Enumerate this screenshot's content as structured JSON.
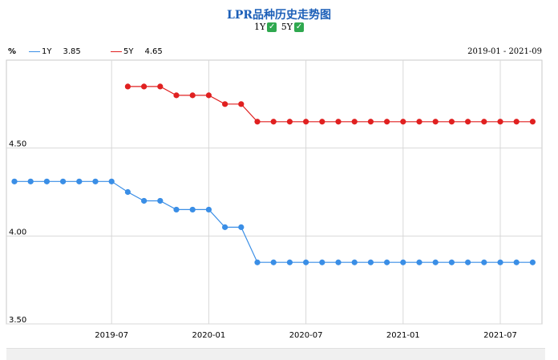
{
  "title": "LPR品种历史走势图",
  "toggles": [
    {
      "label": "1Y",
      "checked": true
    },
    {
      "label": "5Y",
      "checked": true
    }
  ],
  "check_glyph": "✓",
  "unit": "%",
  "legend": [
    {
      "name": "1Y",
      "value": "3.85",
      "color": "#3a8ee6"
    },
    {
      "name": "5Y",
      "value": "4.65",
      "color": "#e02020"
    }
  ],
  "date_range": "2019-01 - 2021-09",
  "chart_data": {
    "type": "line",
    "ylim": [
      3.5,
      5.0
    ],
    "yticks": [
      3.5,
      4.0,
      4.5
    ],
    "ytick_labels": [
      "3.50",
      "4.00",
      "4.50"
    ],
    "xlim": [
      "2019-01",
      "2021-09"
    ],
    "xticks": [
      "2019-07",
      "2020-01",
      "2020-07",
      "2021-01",
      "2021-07"
    ],
    "grid": true,
    "series": [
      {
        "name": "1Y",
        "color": "#3a8ee6",
        "x": [
          "2019-01",
          "2019-02",
          "2019-03",
          "2019-04",
          "2019-05",
          "2019-06",
          "2019-07",
          "2019-08",
          "2019-09",
          "2019-10",
          "2019-11",
          "2019-12",
          "2020-01",
          "2020-02",
          "2020-03",
          "2020-04",
          "2020-05",
          "2020-06",
          "2020-07",
          "2020-08",
          "2020-09",
          "2020-10",
          "2020-11",
          "2020-12",
          "2021-01",
          "2021-02",
          "2021-03",
          "2021-04",
          "2021-05",
          "2021-06",
          "2021-07",
          "2021-08",
          "2021-09"
        ],
        "values": [
          4.31,
          4.31,
          4.31,
          4.31,
          4.31,
          4.31,
          4.31,
          4.25,
          4.2,
          4.2,
          4.15,
          4.15,
          4.15,
          4.05,
          4.05,
          3.85,
          3.85,
          3.85,
          3.85,
          3.85,
          3.85,
          3.85,
          3.85,
          3.85,
          3.85,
          3.85,
          3.85,
          3.85,
          3.85,
          3.85,
          3.85,
          3.85,
          3.85
        ]
      },
      {
        "name": "5Y",
        "color": "#e02020",
        "x": [
          "2019-08",
          "2019-09",
          "2019-10",
          "2019-11",
          "2019-12",
          "2020-01",
          "2020-02",
          "2020-03",
          "2020-04",
          "2020-05",
          "2020-06",
          "2020-07",
          "2020-08",
          "2020-09",
          "2020-10",
          "2020-11",
          "2020-12",
          "2021-01",
          "2021-02",
          "2021-03",
          "2021-04",
          "2021-05",
          "2021-06",
          "2021-07",
          "2021-08",
          "2021-09"
        ],
        "values": [
          4.85,
          4.85,
          4.85,
          4.8,
          4.8,
          4.8,
          4.75,
          4.75,
          4.65,
          4.65,
          4.65,
          4.65,
          4.65,
          4.65,
          4.65,
          4.65,
          4.65,
          4.65,
          4.65,
          4.65,
          4.65,
          4.65,
          4.65,
          4.65,
          4.65,
          4.65
        ]
      }
    ]
  }
}
